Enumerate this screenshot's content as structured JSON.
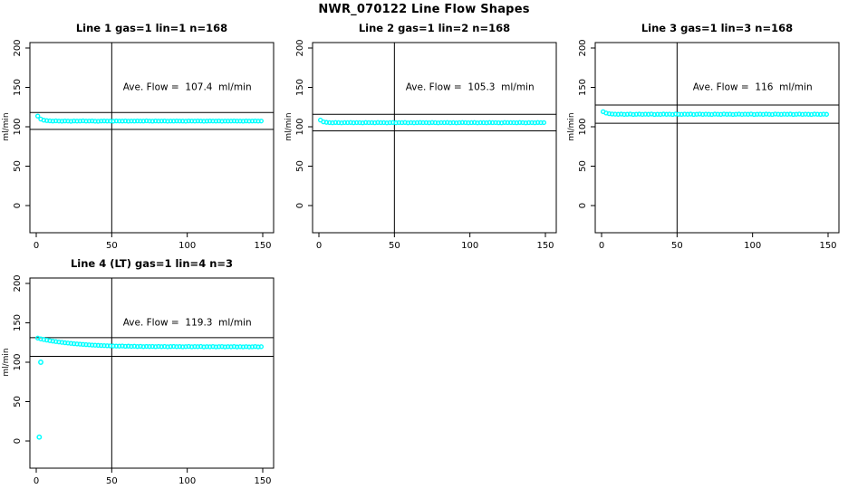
{
  "page": {
    "background": "#ffffff",
    "text_color": "#000000"
  },
  "chart_data": {
    "type": "scatter",
    "suptitle": "NWR_070122  Line Flow Shapes",
    "ylabel": "ml/min",
    "xlabel": "",
    "xticks": [
      0,
      50,
      100,
      150
    ],
    "yticks": [
      0,
      50,
      100,
      150,
      200
    ],
    "xlim": [
      -6,
      158
    ],
    "ylim": [
      -34,
      207
    ],
    "grid": false,
    "point_color": "#00FFFF",
    "axis_color": "#000000",
    "charts": [
      {
        "title": "Line 1 gas=1 lin=1 n=168",
        "annotation": "Ave. Flow =  107.4  ml/min",
        "ave_flow": 107.4,
        "n": 168,
        "vline_x": 50,
        "hlines": [
          118.1,
          96.7
        ],
        "x_start": 1,
        "x_step": 2,
        "y": [
          113.6,
          109.8,
          108.4,
          107.8,
          107.5,
          107.2,
          107.5,
          107.3,
          107.1,
          107.4,
          107.3,
          107.0,
          107.4,
          107.2,
          107.3,
          107.5,
          107.2,
          107.3,
          107.4,
          107.1,
          107.0,
          107.3,
          107.4,
          107.2,
          107.3,
          107.1,
          107.4,
          107.3,
          107.2,
          107.4,
          107.1,
          107.3,
          107.2,
          107.4,
          107.3,
          107.2,
          107.5,
          107.3,
          107.1,
          107.4,
          107.2,
          107.3,
          107.4,
          107.1,
          107.3,
          107.2,
          107.4,
          107.3,
          107.2,
          107.1,
          107.4,
          107.3,
          107.2,
          107.4,
          107.3,
          107.1,
          107.2,
          107.4,
          107.3,
          107.2,
          107.4,
          107.1,
          107.3,
          107.2,
          107.3,
          107.4,
          107.2,
          107.3,
          107.1,
          107.4,
          107.2,
          107.3,
          107.4,
          107.2,
          107.3
        ],
        "extra_points": []
      },
      {
        "title": "Line 2 gas=1 lin=2 n=168",
        "annotation": "Ave. Flow =  105.3  ml/min",
        "ave_flow": 105.3,
        "n": 168,
        "vline_x": 50,
        "hlines": [
          115.8,
          94.8
        ],
        "x_start": 1,
        "x_step": 2,
        "y": [
          108.5,
          106.2,
          105.6,
          105.3,
          105.1,
          105.4,
          105.2,
          105.0,
          105.3,
          105.2,
          105.4,
          105.1,
          105.3,
          105.2,
          105.0,
          105.4,
          105.2,
          105.3,
          105.1,
          105.4,
          105.2,
          105.3,
          105.0,
          105.2,
          105.4,
          105.1,
          105.3,
          105.2,
          105.4,
          105.0,
          105.3,
          105.1,
          105.2,
          105.4,
          105.2,
          105.3,
          105.1,
          105.4,
          105.2,
          105.0,
          105.3,
          105.2,
          105.4,
          105.1,
          105.3,
          105.0,
          105.2,
          105.4,
          105.3,
          105.1,
          105.2,
          105.4,
          105.0,
          105.3,
          105.2,
          105.1,
          105.4,
          105.2,
          105.3,
          105.1,
          105.0,
          105.4,
          105.2,
          105.3,
          105.2,
          105.1,
          105.4,
          105.3,
          105.0,
          105.2,
          105.3,
          105.1,
          105.4,
          105.2,
          105.3
        ],
        "extra_points": []
      },
      {
        "title": "Line 3 gas=1 lin=3 n=168",
        "annotation": "Ave. Flow =  116  ml/min",
        "ave_flow": 116,
        "n": 168,
        "vline_x": 50,
        "hlines": [
          127.6,
          104.4
        ],
        "x_start": 1,
        "x_step": 2,
        "y": [
          119.2,
          117.4,
          116.6,
          116.2,
          116.0,
          115.8,
          116.1,
          115.7,
          115.9,
          116.2,
          115.6,
          115.9,
          116.1,
          115.7,
          116.0,
          115.8,
          116.2,
          115.6,
          115.9,
          115.7,
          116.1,
          115.8,
          116.0,
          115.6,
          116.2,
          115.9,
          115.7,
          116.0,
          115.8,
          116.1,
          115.6,
          115.9,
          116.2,
          115.7,
          116.0,
          115.8,
          115.6,
          116.1,
          115.9,
          115.7,
          116.2,
          115.8,
          116.0,
          115.6,
          115.9,
          116.1,
          115.7,
          116.0,
          115.8,
          116.2,
          115.6,
          115.9,
          116.0,
          115.7,
          116.1,
          115.8,
          115.6,
          116.2,
          115.9,
          115.7,
          116.0,
          115.8,
          116.1,
          115.6,
          115.9,
          116.2,
          115.7,
          116.0,
          115.8,
          115.6,
          116.1,
          115.9,
          115.7,
          116.0,
          115.8
        ],
        "extra_points": []
      },
      {
        "title": "Line 4 (LT) gas=1 lin=4 n=3",
        "annotation": "Ave. Flow =  119.3  ml/min",
        "ave_flow": 119.3,
        "n": 3,
        "vline_x": 50,
        "hlines": [
          131.2,
          107.4
        ],
        "x_start": 1,
        "x_step": 2,
        "y": [
          130.6,
          129.6,
          128.8,
          128.1,
          127.4,
          126.8,
          126.2,
          125.7,
          125.2,
          124.7,
          124.3,
          123.9,
          123.5,
          123.2,
          122.9,
          122.6,
          122.3,
          122.1,
          121.8,
          121.6,
          121.4,
          121.2,
          121.1,
          120.9,
          120.8,
          120.6,
          120.5,
          120.4,
          120.6,
          120.2,
          120.4,
          120.1,
          120.3,
          119.9,
          120.2,
          119.8,
          120.1,
          119.9,
          120.0,
          119.7,
          120.1,
          119.8,
          120.0,
          119.6,
          119.9,
          120.1,
          119.7,
          119.9,
          119.6,
          119.8,
          120.0,
          119.6,
          119.9,
          119.7,
          120.0,
          119.5,
          119.8,
          119.6,
          119.9,
          119.5,
          119.7,
          119.9,
          119.5,
          119.8,
          119.6,
          119.9,
          119.4,
          119.7,
          119.5,
          119.8,
          119.4,
          119.6,
          119.9,
          119.5,
          119.7
        ],
        "extra_points": [
          [
            3,
            100
          ],
          [
            2,
            5
          ]
        ]
      }
    ]
  }
}
